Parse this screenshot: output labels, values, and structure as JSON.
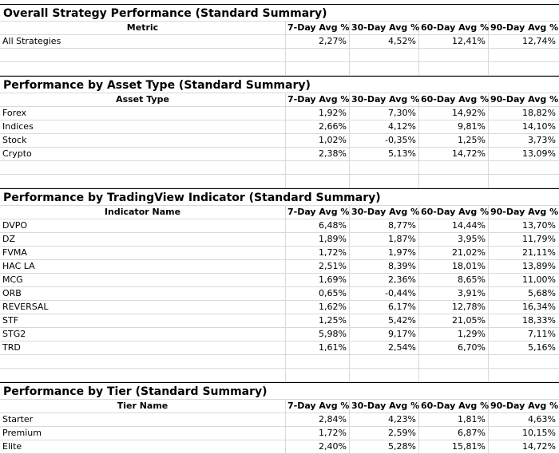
{
  "columns": [
    "7-Day Avg %",
    "30-Day Avg %",
    "60-Day Avg %",
    "90-Day Avg %"
  ],
  "sections": [
    {
      "title": "Overall Strategy Performance (Standard Summary)",
      "label_header": "Metric",
      "rows": [
        {
          "name": "All Strategies",
          "values": [
            "2,27%",
            "4,52%",
            "12,41%",
            "12,74%"
          ]
        }
      ]
    },
    {
      "title": "Performance by Asset Type (Standard Summary)",
      "label_header": "Asset Type",
      "rows": [
        {
          "name": "Forex",
          "values": [
            "1,92%",
            "7,30%",
            "14,92%",
            "18,82%"
          ]
        },
        {
          "name": "Indices",
          "values": [
            "2,66%",
            "4,12%",
            "9,81%",
            "14,10%"
          ]
        },
        {
          "name": "Stock",
          "values": [
            "1,02%",
            "-0,35%",
            "1,25%",
            "3,73%"
          ]
        },
        {
          "name": "Crypto",
          "values": [
            "2,38%",
            "5,13%",
            "14,72%",
            "13,09%"
          ]
        }
      ]
    },
    {
      "title": "Performance by TradingView Indicator (Standard Summary)",
      "label_header": "Indicator Name",
      "rows": [
        {
          "name": "DVPO",
          "values": [
            "6,48%",
            "8,77%",
            "14,44%",
            "13,70%"
          ]
        },
        {
          "name": "DZ",
          "values": [
            "1,89%",
            "1,87%",
            "3,95%",
            "11,79%"
          ]
        },
        {
          "name": "FVMA",
          "values": [
            "1,72%",
            "1,97%",
            "21,02%",
            "21,11%"
          ]
        },
        {
          "name": "HAC LA",
          "values": [
            "2,51%",
            "8,39%",
            "18,01%",
            "13,89%"
          ]
        },
        {
          "name": "MCG",
          "values": [
            "1,69%",
            "2,36%",
            "8,65%",
            "11,00%"
          ]
        },
        {
          "name": "ORB",
          "values": [
            "0,65%",
            "-0,44%",
            "3,91%",
            "5,68%"
          ]
        },
        {
          "name": "REVERSAL",
          "values": [
            "1,62%",
            "6,17%",
            "12,78%",
            "16,34%"
          ]
        },
        {
          "name": "STF",
          "values": [
            "1,25%",
            "5,42%",
            "21,05%",
            "18,33%"
          ]
        },
        {
          "name": "STG2",
          "values": [
            "5,98%",
            "9,17%",
            "1,29%",
            "7,11%"
          ]
        },
        {
          "name": "TRD",
          "values": [
            "1,61%",
            "2,54%",
            "6,70%",
            "5,16%"
          ]
        }
      ]
    },
    {
      "title": "Performance by Tier (Standard Summary)",
      "label_header": "Tier Name",
      "rows": [
        {
          "name": "Starter",
          "values": [
            "2,84%",
            "4,23%",
            "1,81%",
            "4,63%"
          ]
        },
        {
          "name": "Premium",
          "values": [
            "1,72%",
            "2,59%",
            "6,87%",
            "10,15%"
          ]
        },
        {
          "name": "Elite",
          "values": [
            "2,40%",
            "5,28%",
            "15,81%",
            "14,72%"
          ]
        }
      ]
    }
  ]
}
